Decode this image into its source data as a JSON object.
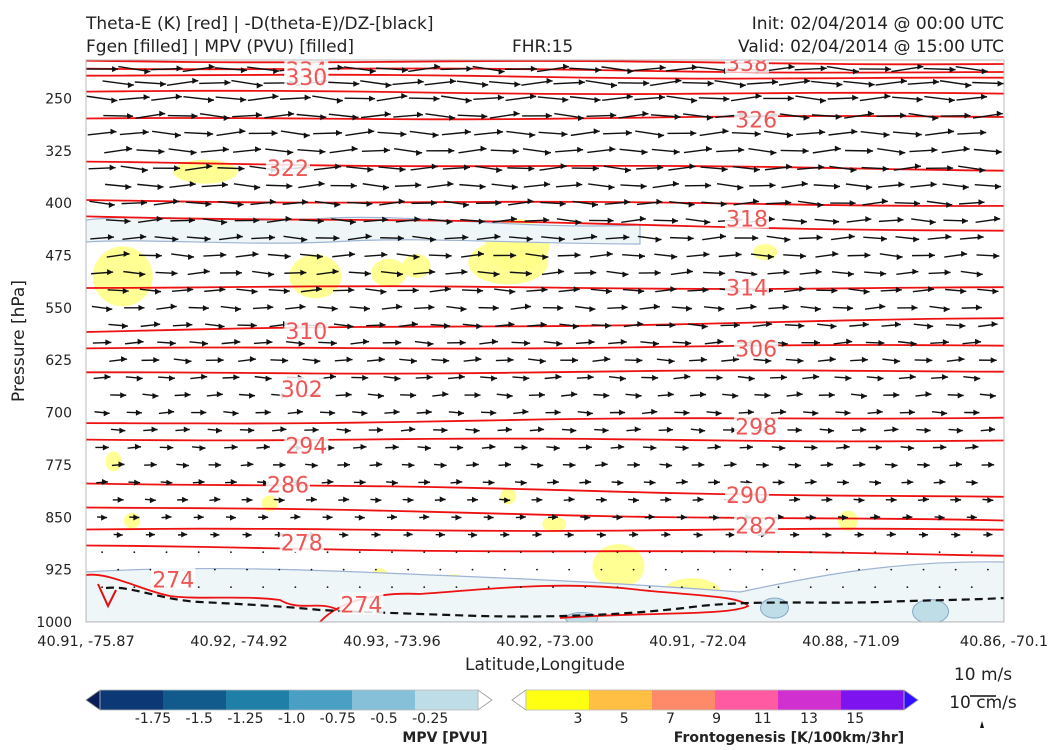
{
  "header": {
    "title_line1": "Theta-E (K) [red] | -D(theta-E)/DZ-[black]",
    "title_line2": "Fgen [filled] | MPV (PVU) [filled]",
    "fhr": "FHR:15",
    "init": "Init: 02/04/2014 @ 00:00 UTC",
    "valid": "Valid: 02/04/2014 @ 15:00 UTC"
  },
  "chart_data": {
    "type": "cross-section",
    "xlabel": "Latitude,Longitude",
    "ylabel": "Pressure [hPa]",
    "ylim": [
      1000,
      200
    ],
    "y_scale": "linear, inverted",
    "x_ticks": [
      "40.91, -75.87",
      "40.92, -74.92",
      "40.93, -73.96",
      "40.92, -73.00",
      "40.91, -72.04",
      "40.88, -71.09",
      "40.86, -70.1"
    ],
    "y_ticks": [
      250,
      325,
      400,
      475,
      550,
      625,
      700,
      775,
      850,
      925,
      1000
    ],
    "theta_e_contours": {
      "color": "#ee1111",
      "levels_K": [
        274,
        278,
        282,
        286,
        290,
        294,
        298,
        302,
        306,
        310,
        314,
        318,
        322,
        326,
        330,
        334,
        338
      ],
      "labels": [
        {
          "text": "338",
          "x": 0.72,
          "p": 199
        },
        {
          "text": "334",
          "x": 0.24,
          "p": 209
        },
        {
          "text": "330",
          "x": 0.24,
          "p": 219
        },
        {
          "text": "326",
          "x": 0.73,
          "p": 280
        },
        {
          "text": "322",
          "x": 0.22,
          "p": 350
        },
        {
          "text": "318",
          "x": 0.72,
          "p": 422
        },
        {
          "text": "314",
          "x": 0.72,
          "p": 521
        },
        {
          "text": "310",
          "x": 0.24,
          "p": 583
        },
        {
          "text": "306",
          "x": 0.73,
          "p": 608
        },
        {
          "text": "302",
          "x": 0.235,
          "p": 666
        },
        {
          "text": "298",
          "x": 0.73,
          "p": 720
        },
        {
          "text": "294",
          "x": 0.24,
          "p": 747
        },
        {
          "text": "290",
          "x": 0.72,
          "p": 818
        },
        {
          "text": "286",
          "x": 0.22,
          "p": 803
        },
        {
          "text": "282",
          "x": 0.73,
          "p": 862
        },
        {
          "text": "278",
          "x": 0.235,
          "p": 886
        },
        {
          "text": "274",
          "x": 0.095,
          "p": 939
        },
        {
          "text": "274",
          "x": 0.3,
          "p": 975
        }
      ]
    },
    "wind_barbs": {
      "color": "#111111",
      "reference": [
        "10 m/s",
        "10 cm/s"
      ]
    },
    "mpv_colorbar": {
      "label": "MPV [PVU]",
      "ticks": [
        "-1.75",
        "-1.5",
        "-1.25",
        "-1.0",
        "-0.75",
        "-0.5",
        "-0.25"
      ],
      "colors": [
        "#081d58",
        "#0c3875",
        "#105b8c",
        "#1f7fa6",
        "#4aa0c4",
        "#86bfd8",
        "#bfdde7",
        "#ffffff"
      ]
    },
    "fgen_colorbar": {
      "label": "Frontogenesis [K/100km/3hr]",
      "ticks": [
        "3",
        "5",
        "7",
        "9",
        "11",
        "13",
        "15"
      ],
      "colors": [
        "#ffffff",
        "#ffff11",
        "#ffbf44",
        "#ff8a6a",
        "#ff5aa2",
        "#d030d0",
        "#7d14f0",
        "#3010ff"
      ]
    }
  }
}
